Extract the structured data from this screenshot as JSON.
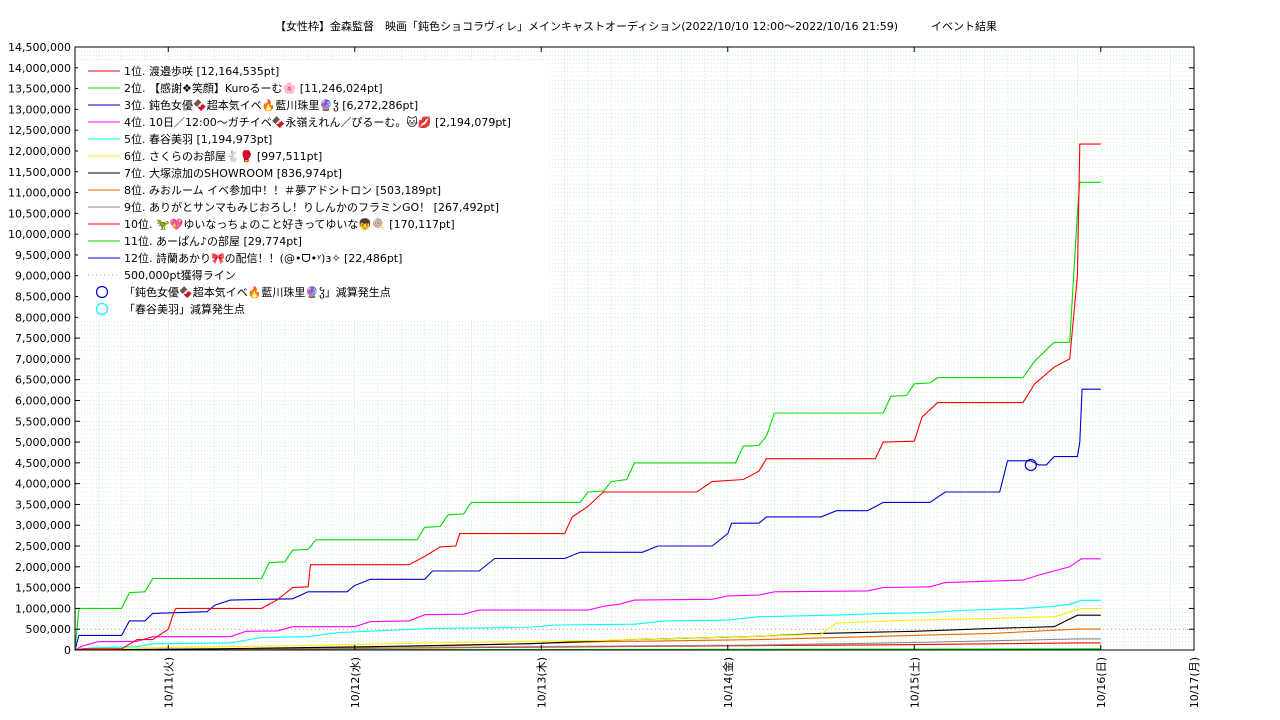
{
  "chart_data": {
    "type": "line",
    "title": "【女性枠】金森監督　映画「鈍色ショコラヴィレ」メインキャストオーディション(2022/10/10 12:00〜2022/10/16 21:59)　　　イベント結果",
    "ylim": [
      0,
      14500000
    ],
    "yticks": [
      0,
      500000,
      1000000,
      1500000,
      2000000,
      2500000,
      3000000,
      3500000,
      4000000,
      4500000,
      5000000,
      5500000,
      6000000,
      6500000,
      7000000,
      7500000,
      8000000,
      8500000,
      9000000,
      9500000,
      10000000,
      10500000,
      11000000,
      11500000,
      12000000,
      12500000,
      13000000,
      13500000,
      14000000,
      14500000
    ],
    "ytick_labels": [
      "0",
      "500,000",
      "1,000,000",
      "1,500,000",
      "2,000,000",
      "2,500,000",
      "3,000,000",
      "3,500,000",
      "4,000,000",
      "4,500,000",
      "5,000,000",
      "5,500,000",
      "6,000,000",
      "6,500,000",
      "7,000,000",
      "7,500,000",
      "8,000,000",
      "8,500,000",
      "9,000,000",
      "9,500,000",
      "10,000,000",
      "10,500,000",
      "11,000,000",
      "11,500,000",
      "12,000,000",
      "12,500,000",
      "13,000,000",
      "13,500,000",
      "14,000,000",
      "14,500,000"
    ],
    "xlim_hours": [
      12,
      156
    ],
    "xticks_hours": [
      24,
      48,
      72,
      96,
      120,
      144,
      168
    ],
    "xtick_labels": [
      "10/11(火)",
      "10/12(水)",
      "10/13(木)",
      "10/14(金)",
      "10/15(土)",
      "10/16(日)",
      "10/17(月)"
    ],
    "grid": true,
    "legend_position": "top-left",
    "series": [
      {
        "name": "1位. 渡邉歩咲 [12,164,535pt]",
        "color": "#ff0000",
        "points": [
          [
            12,
            0
          ],
          [
            13,
            30000
          ],
          [
            18,
            30000
          ],
          [
            20,
            250000
          ],
          [
            22,
            250000
          ],
          [
            24,
            500000
          ],
          [
            24.7,
            900000
          ],
          [
            25,
            1000000
          ],
          [
            36,
            1000000
          ],
          [
            38,
            1200000
          ],
          [
            40,
            1500000
          ],
          [
            42,
            1520000
          ],
          [
            42.3,
            2050000
          ],
          [
            55,
            2050000
          ],
          [
            57,
            2250000
          ],
          [
            59,
            2480000
          ],
          [
            61,
            2500000
          ],
          [
            61.5,
            2800000
          ],
          [
            75,
            2800000
          ],
          [
            76,
            3200000
          ],
          [
            78,
            3450000
          ],
          [
            80,
            3800000
          ],
          [
            92,
            3800000
          ],
          [
            94,
            4050000
          ],
          [
            98,
            4100000
          ],
          [
            100,
            4300000
          ],
          [
            101,
            4600000
          ],
          [
            115,
            4600000
          ],
          [
            116,
            5000000
          ],
          [
            120,
            5020000
          ],
          [
            121,
            5600000
          ],
          [
            123,
            5950000
          ],
          [
            134,
            5950000
          ],
          [
            135.5,
            6400000
          ],
          [
            138,
            6800000
          ],
          [
            140,
            7000000
          ],
          [
            141,
            9000000
          ],
          [
            141.3,
            12164535
          ],
          [
            144,
            12164535
          ]
        ]
      },
      {
        "name": "2位. 【感謝❖笑顔】Kuroるーむ🌸 [11,246,024pt]",
        "color": "#00dd00",
        "points": [
          [
            12,
            0
          ],
          [
            12.5,
            1000000
          ],
          [
            18,
            1000000
          ],
          [
            19,
            1380000
          ],
          [
            21,
            1400000
          ],
          [
            22,
            1720000
          ],
          [
            36,
            1720000
          ],
          [
            37,
            2100000
          ],
          [
            39,
            2120000
          ],
          [
            40,
            2400000
          ],
          [
            42,
            2420000
          ],
          [
            43,
            2650000
          ],
          [
            56,
            2650000
          ],
          [
            57,
            2950000
          ],
          [
            59,
            2970000
          ],
          [
            60,
            3250000
          ],
          [
            62,
            3270000
          ],
          [
            63,
            3550000
          ],
          [
            77,
            3550000
          ],
          [
            78,
            3800000
          ],
          [
            80,
            3820000
          ],
          [
            81,
            4050000
          ],
          [
            83,
            4100000
          ],
          [
            84,
            4500000
          ],
          [
            97,
            4500000
          ],
          [
            98,
            4900000
          ],
          [
            100,
            4920000
          ],
          [
            101,
            5150000
          ],
          [
            102,
            5700000
          ],
          [
            116,
            5700000
          ],
          [
            117,
            6100000
          ],
          [
            119,
            6120000
          ],
          [
            120,
            6400000
          ],
          [
            122,
            6420000
          ],
          [
            123,
            6550000
          ],
          [
            134,
            6550000
          ],
          [
            135.5,
            6950000
          ],
          [
            138,
            7400000
          ],
          [
            140,
            7400000
          ],
          [
            141,
            10500000
          ],
          [
            141.3,
            11246024
          ],
          [
            144,
            11246024
          ]
        ]
      },
      {
        "name": "3位. 鈍色女優🍫超本気イベ🔥藍川珠里🔮ჴ [6,272,286pt]",
        "color": "#0000cc",
        "points": [
          [
            12,
            0
          ],
          [
            12.5,
            350000
          ],
          [
            18,
            350000
          ],
          [
            19,
            700000
          ],
          [
            21,
            700000
          ],
          [
            22,
            880000
          ],
          [
            29,
            920000
          ],
          [
            30,
            1080000
          ],
          [
            32,
            1200000
          ],
          [
            40,
            1230000
          ],
          [
            42,
            1400000
          ],
          [
            47,
            1400000
          ],
          [
            48,
            1550000
          ],
          [
            50,
            1700000
          ],
          [
            57,
            1700000
          ],
          [
            58,
            1900000
          ],
          [
            64,
            1900000
          ],
          [
            66,
            2200000
          ],
          [
            75,
            2200000
          ],
          [
            77,
            2350000
          ],
          [
            85,
            2350000
          ],
          [
            87,
            2500000
          ],
          [
            94,
            2500000
          ],
          [
            96,
            2800000
          ],
          [
            96.5,
            3050000
          ],
          [
            100,
            3050000
          ],
          [
            101,
            3200000
          ],
          [
            108,
            3200000
          ],
          [
            110,
            3350000
          ],
          [
            114,
            3350000
          ],
          [
            116,
            3550000
          ],
          [
            122,
            3550000
          ],
          [
            124,
            3800000
          ],
          [
            131,
            3800000
          ],
          [
            132,
            4550000
          ],
          [
            135,
            4550000
          ],
          [
            136,
            4450000
          ],
          [
            137,
            4450000
          ],
          [
            138,
            4650000
          ],
          [
            141,
            4650000
          ],
          [
            141.3,
            5000000
          ],
          [
            141.6,
            6272286
          ],
          [
            144,
            6272286
          ]
        ]
      },
      {
        "name": "4位. 10日／12:00〜ガチイベ🍫永嶺えれん／ぴるーむ。🐱💋 [2,194,079pt]",
        "color": "#ff00ff",
        "points": [
          [
            12,
            0
          ],
          [
            13,
            100000
          ],
          [
            15,
            200000
          ],
          [
            20,
            210000
          ],
          [
            22,
            320000
          ],
          [
            32,
            320000
          ],
          [
            34,
            450000
          ],
          [
            38,
            460000
          ],
          [
            40,
            560000
          ],
          [
            48,
            560000
          ],
          [
            50,
            680000
          ],
          [
            55,
            700000
          ],
          [
            57,
            850000
          ],
          [
            62,
            860000
          ],
          [
            64,
            960000
          ],
          [
            78,
            960000
          ],
          [
            80,
            1050000
          ],
          [
            82,
            1100000
          ],
          [
            84,
            1200000
          ],
          [
            94,
            1220000
          ],
          [
            96,
            1300000
          ],
          [
            100,
            1320000
          ],
          [
            102,
            1400000
          ],
          [
            114,
            1420000
          ],
          [
            116,
            1500000
          ],
          [
            122,
            1520000
          ],
          [
            124,
            1620000
          ],
          [
            134,
            1680000
          ],
          [
            136,
            1800000
          ],
          [
            138,
            1900000
          ],
          [
            140,
            2000000
          ],
          [
            141.5,
            2194079
          ],
          [
            144,
            2194079
          ]
        ]
      },
      {
        "name": "5位. 春谷美羽 [1,194,973pt]",
        "color": "#00ffff",
        "points": [
          [
            12,
            0
          ],
          [
            14,
            50000
          ],
          [
            20,
            80000
          ],
          [
            22,
            150000
          ],
          [
            32,
            170000
          ],
          [
            36,
            300000
          ],
          [
            42,
            320000
          ],
          [
            46,
            420000
          ],
          [
            52,
            470000
          ],
          [
            58,
            520000
          ],
          [
            70,
            540000
          ],
          [
            74,
            600000
          ],
          [
            84,
            620000
          ],
          [
            88,
            700000
          ],
          [
            96,
            720000
          ],
          [
            100,
            800000
          ],
          [
            110,
            840000
          ],
          [
            116,
            880000
          ],
          [
            122,
            900000
          ],
          [
            126,
            950000
          ],
          [
            134,
            1000000
          ],
          [
            138,
            1050000
          ],
          [
            140,
            1100000
          ],
          [
            141.5,
            1194973
          ],
          [
            144,
            1194973
          ]
        ]
      },
      {
        "name": "6位. さくらのお部屋🐇🥊 [997,511pt]",
        "color": "#ffee00",
        "points": [
          [
            12,
            0
          ],
          [
            20,
            50000
          ],
          [
            40,
            100000
          ],
          [
            60,
            180000
          ],
          [
            80,
            230000
          ],
          [
            100,
            330000
          ],
          [
            108,
            380000
          ],
          [
            110,
            650000
          ],
          [
            120,
            720000
          ],
          [
            130,
            760000
          ],
          [
            138,
            800000
          ],
          [
            141.5,
            997511
          ],
          [
            144,
            997511
          ]
        ]
      },
      {
        "name": "7位. 大塚涼加のSHOWROOM [836,974pt]",
        "color": "#000000",
        "points": [
          [
            12,
            0
          ],
          [
            30,
            30000
          ],
          [
            50,
            80000
          ],
          [
            70,
            150000
          ],
          [
            84,
            250000
          ],
          [
            100,
            330000
          ],
          [
            108,
            400000
          ],
          [
            120,
            450000
          ],
          [
            130,
            520000
          ],
          [
            138,
            560000
          ],
          [
            141,
            836974
          ],
          [
            144,
            836974
          ]
        ]
      },
      {
        "name": "8位. みおルーム イベ参加中！！＃夢アドシトロン [503,189pt]",
        "color": "#ee6600",
        "points": [
          [
            12,
            0
          ],
          [
            30,
            20000
          ],
          [
            60,
            100000
          ],
          [
            80,
            200000
          ],
          [
            100,
            250000
          ],
          [
            120,
            350000
          ],
          [
            130,
            400000
          ],
          [
            141,
            503189
          ],
          [
            144,
            503189
          ]
        ]
      },
      {
        "name": "9位. ありがとサンマもみじおろし！りしんかのフラミンGO！ [267,492pt]",
        "color": "#888888",
        "points": [
          [
            12,
            0
          ],
          [
            40,
            30000
          ],
          [
            70,
            80000
          ],
          [
            100,
            120000
          ],
          [
            120,
            180000
          ],
          [
            141,
            267492
          ],
          [
            144,
            267492
          ]
        ]
      },
      {
        "name": "10位. 🦖💖ゆいなっちょのこと好きってゆいな👦🍭 [170,117pt]",
        "color": "#ff0000",
        "points": [
          [
            12,
            0
          ],
          [
            40,
            30000
          ],
          [
            80,
            80000
          ],
          [
            120,
            130000
          ],
          [
            141,
            170117
          ],
          [
            144,
            170117
          ]
        ]
      },
      {
        "name": "11位. あーぱん♪の部屋 [29,774pt]",
        "color": "#00dd00",
        "points": [
          [
            12,
            0
          ],
          [
            60,
            10000
          ],
          [
            120,
            20000
          ],
          [
            144,
            29774
          ]
        ]
      },
      {
        "name": "12位. 詩蘭あかり🎀の配信！！(@•ᗜ•ʸ)з✧ [22,486pt]",
        "color": "#0000cc",
        "points": [
          [
            12,
            0
          ],
          [
            60,
            8000
          ],
          [
            120,
            15000
          ],
          [
            144,
            22486
          ]
        ]
      }
    ],
    "reference_line": {
      "name": "500,000pt獲得ライン",
      "value": 500000,
      "color": "#ff8888"
    },
    "markers": [
      {
        "name": "「鈍色女優🍫超本気イベ🔥藍川珠里🔮ჴ」減算発生点",
        "color": "#0000cc",
        "points": [
          [
            135,
            4450000
          ]
        ]
      },
      {
        "name": "「春谷美羽」減算発生点",
        "color": "#00ffff",
        "points": []
      }
    ]
  }
}
